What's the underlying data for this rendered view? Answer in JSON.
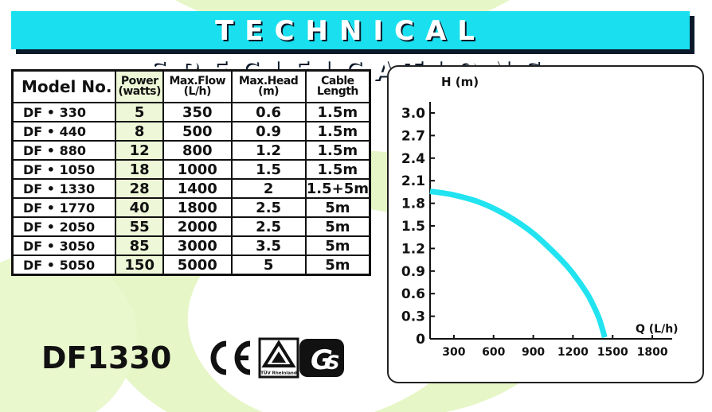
{
  "banner": {
    "title": "TECHNICAL SPECIFICATIONS"
  },
  "table": {
    "headers": [
      "Model No.",
      "Power (watts)",
      "Max.Flow (L/h)",
      "Max.Head (m)",
      "Cable Length"
    ],
    "header_lines": [
      [
        "Model No."
      ],
      [
        "Power",
        "(watts)"
      ],
      [
        "Max.Flow",
        "(L/h)"
      ],
      [
        "Max.Head",
        "(m)"
      ],
      [
        "Cable",
        "Length"
      ]
    ],
    "rows": [
      [
        "DF • 330",
        "5",
        "350",
        "0.6",
        "1.5m"
      ],
      [
        "DF • 440",
        "8",
        "500",
        "0.9",
        "1.5m"
      ],
      [
        "DF • 880",
        "12",
        "800",
        "1.2",
        "1.5m"
      ],
      [
        "DF • 1050",
        "18",
        "1000",
        "1.5",
        "1.5m"
      ],
      [
        "DF • 1330",
        "28",
        "1400",
        "2",
        "1.5+5m"
      ],
      [
        "DF • 1770",
        "40",
        "1800",
        "2.5",
        "5m"
      ],
      [
        "DF • 2050",
        "55",
        "2000",
        "2.5",
        "5m"
      ],
      [
        "DF • 3050",
        "85",
        "3000",
        "3.5",
        "5m"
      ],
      [
        "DF • 5050",
        "150",
        "5000",
        "5",
        "5m"
      ]
    ]
  },
  "product_code": "DF1330",
  "certifications": {
    "marks": [
      "CE",
      "TÜV Rheinland",
      "GS"
    ],
    "tuv_text": "TÜV Rheinland",
    "ce_text": "CE",
    "gs_text": "GS"
  },
  "colors": {
    "banner": "#19dfee",
    "curve": "#22e3f0",
    "swirl": "#e4f5c4",
    "text": "#111111"
  },
  "chart_data": {
    "type": "line",
    "title": "",
    "xlabel": "Q (L/h)",
    "ylabel": "H (m)",
    "xticks": [
      300,
      600,
      900,
      1200,
      1500,
      1800
    ],
    "yticks": [
      "0",
      "0.3",
      "0.6",
      "0.9",
      "1.2",
      "1.5",
      "1.8",
      "2.1",
      "2.4",
      "2.7",
      "3.0"
    ],
    "xlim": [
      120,
      1950
    ],
    "ylim": [
      0,
      3.0
    ],
    "grid": false,
    "series": [
      {
        "name": "",
        "x": [
          120,
          300,
          500,
          700,
          900,
          1100,
          1200,
          1300,
          1350,
          1400,
          1440
        ],
        "y": [
          1.96,
          1.91,
          1.81,
          1.64,
          1.4,
          1.07,
          0.87,
          0.62,
          0.46,
          0.26,
          0.02
        ]
      }
    ]
  }
}
